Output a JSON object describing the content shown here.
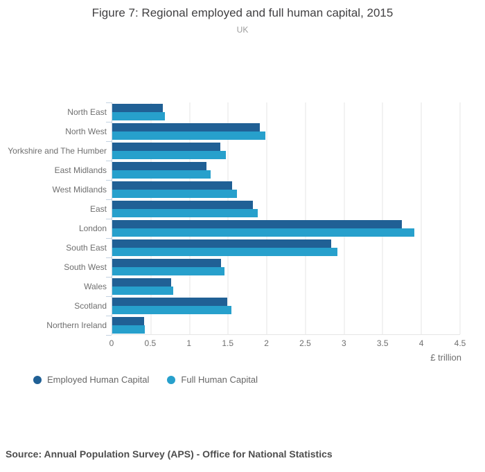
{
  "header": {
    "title": "Figure 7: Regional employed and full human capital, 2015",
    "subtitle": "UK"
  },
  "chart_data": {
    "type": "bar",
    "orientation": "horizontal",
    "title": "Figure 7: Regional employed and full human capital, 2015",
    "subtitle": "UK",
    "categories": [
      "North East",
      "North West",
      "Yorkshire and The Humber",
      "East Midlands",
      "West Midlands",
      "East",
      "London",
      "South East",
      "South West",
      "Wales",
      "Scotland",
      "Northern Ireland"
    ],
    "series": [
      {
        "name": "Employed Human Capital",
        "color": "#206095",
        "values": [
          0.65,
          1.91,
          1.4,
          1.22,
          1.55,
          1.82,
          3.75,
          2.83,
          1.41,
          0.76,
          1.49,
          0.41
        ]
      },
      {
        "name": "Full Human Capital",
        "color": "#27a0cc",
        "values": [
          0.68,
          1.98,
          1.47,
          1.27,
          1.61,
          1.88,
          3.91,
          2.91,
          1.45,
          0.79,
          1.54,
          0.42
        ]
      }
    ],
    "xlabel": "£ trillion",
    "ylabel": "",
    "xlim": [
      0,
      4.5
    ],
    "xticks": [
      0,
      0.5,
      1,
      1.5,
      2,
      2.5,
      3,
      3.5,
      4,
      4.5
    ],
    "grid": true,
    "legend_position": "bottom-left",
    "axis_color": "#c3d2e0",
    "gridline_color": "#e4e4e4"
  },
  "footer": {
    "source": "Source: Annual Population Survey (APS) - Office for National Statistics"
  }
}
